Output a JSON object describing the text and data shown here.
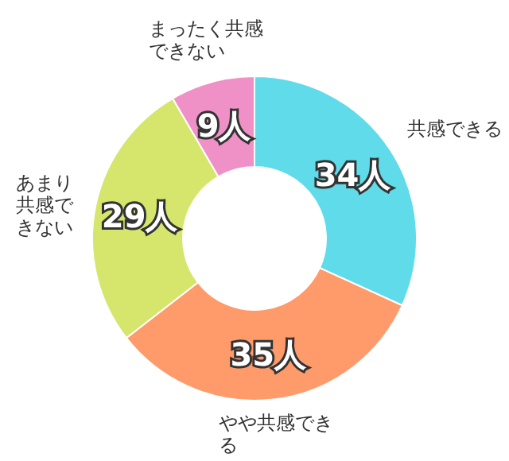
{
  "chart_data": {
    "type": "donut",
    "categories": [
      "共感できる",
      "やや共感できる",
      "あまり共感できない",
      "まったく共感できない"
    ],
    "values": [
      34,
      35,
      29,
      9
    ],
    "colors": [
      "#5fdbe9",
      "#ff9a6a",
      "#d6e66c",
      "#ef90c6"
    ],
    "value_labels": [
      "34人",
      "35人",
      "29人",
      "9人"
    ],
    "legend": false
  }
}
